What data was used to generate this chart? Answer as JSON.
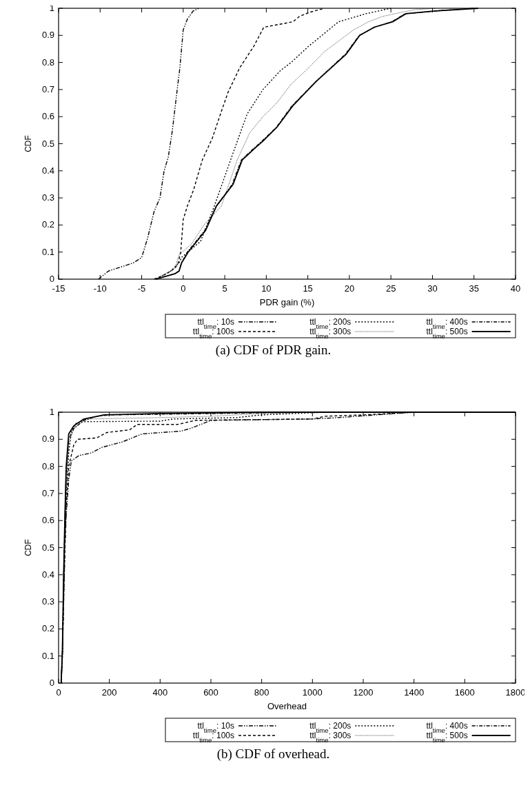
{
  "chart_data": [
    {
      "type": "line",
      "xlabel": "PDR gain (%)",
      "ylabel": "CDF",
      "xlim": [
        -15,
        40
      ],
      "xticks": [
        -15,
        -10,
        -5,
        0,
        5,
        10,
        15,
        20,
        25,
        30,
        35,
        40
      ],
      "ylim": [
        0,
        1
      ],
      "yticks": [
        0,
        0.1,
        0.2,
        0.3,
        0.4,
        0.5,
        0.6,
        0.7,
        0.8,
        0.9,
        1
      ],
      "grid": false,
      "legend": "bottom",
      "annotations": [
        "(a)  CDF of PDR gain."
      ],
      "series": [
        {
          "name": "ttl$_{time}$: 10s",
          "color": "#000000",
          "line_style": "dashed",
          "x": [
            -10.2,
            -9,
            -6,
            -5,
            -4.3,
            -3.5,
            -2.8,
            -2.3,
            -1.8,
            -1.3,
            -0.8,
            -0.4,
            0,
            0.5,
            1.2,
            1.9
          ],
          "values": [
            0,
            0.03,
            0.06,
            0.08,
            0.15,
            0.25,
            0.3,
            0.4,
            0.45,
            0.55,
            0.68,
            0.78,
            0.92,
            0.96,
            0.99,
            1
          ]
        },
        {
          "name": "ttl$_{time}$: 100s",
          "color": "#000000",
          "line_style": "dashed",
          "x": [
            -3.5,
            -2,
            -1,
            -0.6,
            -0.3,
            0,
            0.5,
            1.25,
            2.3,
            3.5,
            4.6,
            5.4,
            6.8,
            8.5,
            9.7,
            13.2,
            14,
            15.2,
            17
          ],
          "values": [
            0,
            0.02,
            0.04,
            0.06,
            0.1,
            0.22,
            0.27,
            0.33,
            0.44,
            0.52,
            0.62,
            0.69,
            0.78,
            0.86,
            0.93,
            0.95,
            0.97,
            0.985,
            1
          ]
        },
        {
          "name": "ttl$_{time}$: 200s",
          "color": "#000000",
          "line_style": "dotted",
          "x": [
            -3.2,
            -1.5,
            -0.5,
            -0.2,
            2.1,
            3.75,
            5.7,
            7.7,
            9.6,
            11.7,
            13,
            15.1,
            18.7,
            22,
            25
          ],
          "values": [
            0,
            0.03,
            0.06,
            0.08,
            0.14,
            0.27,
            0.44,
            0.61,
            0.7,
            0.77,
            0.8,
            0.86,
            0.95,
            0.98,
            1
          ]
        },
        {
          "name": "ttl$_{time}$: 300s",
          "color": "#444444",
          "line_style": "dotted",
          "x": [
            -3.3,
            -1,
            -0.5,
            1,
            2.5,
            4.6,
            6.5,
            8,
            9.6,
            11.25,
            13,
            15.1,
            17,
            18.75,
            20.5,
            22.3,
            24,
            26.25,
            28,
            30.4
          ],
          "values": [
            0,
            0.04,
            0.09,
            0.13,
            0.2,
            0.27,
            0.44,
            0.54,
            0.6,
            0.65,
            0.72,
            0.78,
            0.84,
            0.88,
            0.92,
            0.95,
            0.97,
            0.985,
            0.995,
            1
          ]
        },
        {
          "name": "ttl$_{time}$: 400s",
          "color": "#000000",
          "line_style": "dashed",
          "x": [
            -3.3,
            -1,
            -0.5,
            -0.2,
            0.5,
            2.6,
            4,
            5.9,
            7,
            8.4,
            9.5,
            11.2,
            13.1,
            16,
            19.5,
            21.2,
            23,
            25.1,
            26.7,
            30.3,
            35
          ],
          "values": [
            0,
            0.02,
            0.03,
            0.06,
            0.1,
            0.18,
            0.27,
            0.35,
            0.44,
            0.48,
            0.51,
            0.56,
            0.64,
            0.73,
            0.83,
            0.9,
            0.93,
            0.95,
            0.98,
            0.99,
            1
          ]
        },
        {
          "name": "ttl$_{time}$: 500s",
          "color": "#000000",
          "line_style": "solid",
          "x": [
            -3.3,
            -1,
            -0.5,
            -0.2,
            0.6,
            2.7,
            4,
            6,
            7.1,
            8.5,
            9.6,
            11.25,
            13.2,
            16,
            19.6,
            21.25,
            23,
            25.2,
            26.8,
            30.4,
            35.5
          ],
          "values": [
            0,
            0.02,
            0.03,
            0.06,
            0.1,
            0.18,
            0.27,
            0.35,
            0.44,
            0.48,
            0.51,
            0.56,
            0.64,
            0.73,
            0.83,
            0.9,
            0.93,
            0.95,
            0.98,
            0.99,
            1
          ]
        }
      ]
    },
    {
      "type": "line",
      "xlabel": "Overhead",
      "ylabel": "CDF",
      "xlim": [
        0,
        1800
      ],
      "xticks": [
        0,
        200,
        400,
        600,
        800,
        1000,
        1200,
        1400,
        1600,
        1800
      ],
      "ylim": [
        0,
        1
      ],
      "yticks": [
        0,
        0.1,
        0.2,
        0.3,
        0.4,
        0.5,
        0.6,
        0.7,
        0.8,
        0.9,
        1
      ],
      "grid": false,
      "legend": "bottom",
      "annotations": [
        "(b)  CDF of overhead."
      ],
      "series": [
        {
          "name": "ttl$_{time}$: 10s",
          "color": "#000000",
          "line_style": "dashed",
          "x": [
            10,
            15,
            20,
            25,
            30,
            40,
            50,
            80,
            130,
            170,
            250,
            330,
            480,
            520,
            600,
            1000,
            1100,
            1400
          ],
          "values": [
            0,
            0.1,
            0.3,
            0.5,
            0.62,
            0.75,
            0.82,
            0.84,
            0.85,
            0.87,
            0.89,
            0.92,
            0.93,
            0.94,
            0.97,
            0.975,
            0.98,
            1
          ]
        },
        {
          "name": "ttl$_{time}$: 100s",
          "color": "#000000",
          "line_style": "dashed",
          "x": [
            10,
            15,
            20,
            25,
            30,
            40,
            60,
            75,
            150,
            190,
            280,
            310,
            470,
            540,
            1000,
            1050,
            1200,
            1400
          ],
          "values": [
            0,
            0.1,
            0.3,
            0.5,
            0.65,
            0.8,
            0.88,
            0.9,
            0.905,
            0.925,
            0.935,
            0.955,
            0.955,
            0.97,
            0.975,
            0.985,
            0.99,
            1
          ]
        },
        {
          "name": "ttl$_{time}$: 200s",
          "color": "#000000",
          "line_style": "dotted",
          "x": [
            10,
            15,
            20,
            25,
            30,
            40,
            50,
            70,
            100,
            400,
            450,
            700,
            800,
            1050
          ],
          "values": [
            0,
            0.1,
            0.35,
            0.55,
            0.7,
            0.85,
            0.93,
            0.96,
            0.965,
            0.967,
            0.975,
            0.98,
            0.99,
            1
          ]
        },
        {
          "name": "ttl$_{time}$: 300s",
          "color": "#444444",
          "line_style": "dotted",
          "x": [
            10,
            15,
            20,
            25,
            30,
            40,
            60,
            100,
            130,
            400,
            600,
            800,
            1000
          ],
          "values": [
            0,
            0.1,
            0.35,
            0.55,
            0.72,
            0.88,
            0.94,
            0.97,
            0.975,
            0.98,
            0.985,
            0.995,
            1
          ]
        },
        {
          "name": "ttl$_{time}$: 400s",
          "color": "#000000",
          "line_style": "dashed",
          "x": [
            10,
            15,
            20,
            25,
            30,
            40,
            60,
            100,
            150,
            200,
            600,
            1000
          ],
          "values": [
            0,
            0.12,
            0.4,
            0.6,
            0.78,
            0.9,
            0.94,
            0.97,
            0.985,
            0.99,
            0.995,
            1
          ]
        },
        {
          "name": "ttl$_{time}$: 500s",
          "color": "#000000",
          "line_style": "solid",
          "x": [
            10,
            15,
            20,
            25,
            30,
            40,
            60,
            100,
            180,
            400,
            800,
            1800
          ],
          "values": [
            0,
            0.12,
            0.4,
            0.62,
            0.8,
            0.92,
            0.95,
            0.975,
            0.99,
            0.995,
            1,
            1
          ]
        }
      ]
    }
  ]
}
